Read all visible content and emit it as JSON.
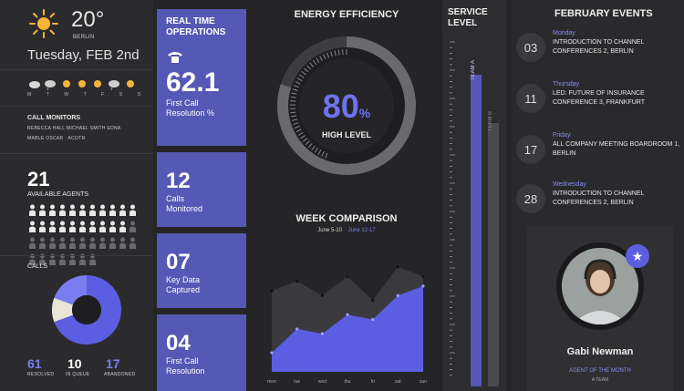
{
  "weather": {
    "temperature": "20°",
    "city": "BERLIN",
    "date": "Tuesday, FEB 2nd",
    "forecast_days": [
      "M",
      "T",
      "W",
      "T",
      "F",
      "S",
      "S"
    ],
    "forecast_icons": [
      "cloud-icon",
      "rain-cloud-icon",
      "sun-icon",
      "sun-icon",
      "sun-icon",
      "rain-cloud-icon",
      "sun-icon"
    ]
  },
  "call_monitors": {
    "title": "CALL MONITORS",
    "names_line1": "REBECCA HALL  MICHAEL SMITH  EDNA",
    "names_line2": "MABLE OSCAR  · ACOTR"
  },
  "agents": {
    "count": "21",
    "label": "AVAILABLE AGENTS",
    "available": 21,
    "total": 40
  },
  "calls": {
    "title": "CALLS",
    "resolved_value": "61",
    "resolved_label": "RESOLVED",
    "queue_value": "10",
    "queue_label": "IN QUEUE",
    "abandoned_value": "17",
    "abandoned_label": "ABANDONED",
    "donut": [
      61,
      10,
      17
    ]
  },
  "operations": {
    "title": "REAL TIME OPERATIONS",
    "metric1_value": "62.1",
    "metric1_label": "First Call Resolution %",
    "metric2_value": "12",
    "metric2_label": "Calls Monitored",
    "metric3_value": "07",
    "metric3_label": "Key Data Captured",
    "metric4_value": "04",
    "metric4_label": "First Call Resolution"
  },
  "efficiency": {
    "title": "ENERGY EFFICIENCY",
    "percent": "80",
    "percent_sign": "%",
    "level_label": "HIGH LEVEL",
    "fill": 0.8
  },
  "week": {
    "title": "WEEK COMPARISON",
    "legend_a": "June 5-10",
    "legend_b": "June 12-17",
    "days": [
      "mon",
      "tue",
      "wed",
      "thu",
      "fri",
      "sat",
      "sun"
    ]
  },
  "chart_data": {
    "type": "area",
    "title": "WEEK COMPARISON",
    "categories": [
      "mon",
      "tue",
      "wed",
      "thu",
      "fri",
      "sat",
      "sun"
    ],
    "series": [
      {
        "name": "June 5-10",
        "values": [
          85,
          95,
          80,
          100,
          75,
          110,
          100
        ]
      },
      {
        "name": "June 12-17",
        "values": [
          20,
          45,
          40,
          60,
          55,
          80,
          90
        ]
      }
    ],
    "ylim": [
      0,
      130
    ],
    "grid": false,
    "colors": [
      "#3a3a3e",
      "#5b5ee0"
    ]
  },
  "service": {
    "title": "SERVICE LEVEL",
    "team_a": "TEAM A",
    "team_b": "TEAM B",
    "team_a_level": 0.9,
    "team_b_level": 0.76
  },
  "events": {
    "title": "FEBRUARY EVENTS",
    "items": [
      {
        "num": "03",
        "day": "Monday",
        "title": "INTRODUCTION TO CHANNEL CONFERENCES 2, Berlin"
      },
      {
        "num": "11",
        "day": "Thursday",
        "title": "LED: FUTURE OF INSURANCE CONFERENCE 3, Frankfurt"
      },
      {
        "num": "17",
        "day": "Friday",
        "title": "ALL COMPANY MEETING BOARDROOM 1, Berlin"
      },
      {
        "num": "28",
        "day": "Wednesday",
        "title": "INTRODUCTION TO CHANNEL CONFERENCES 2, Berlin"
      }
    ]
  },
  "agent_of_month": {
    "name": "Gabi Newman",
    "role": "AGENT OF THE MONTH",
    "team": "A TEAM"
  },
  "colors": {
    "accent": "#5558b4",
    "accent_bright": "#5b5ee0",
    "sun": "#f5b43a"
  }
}
